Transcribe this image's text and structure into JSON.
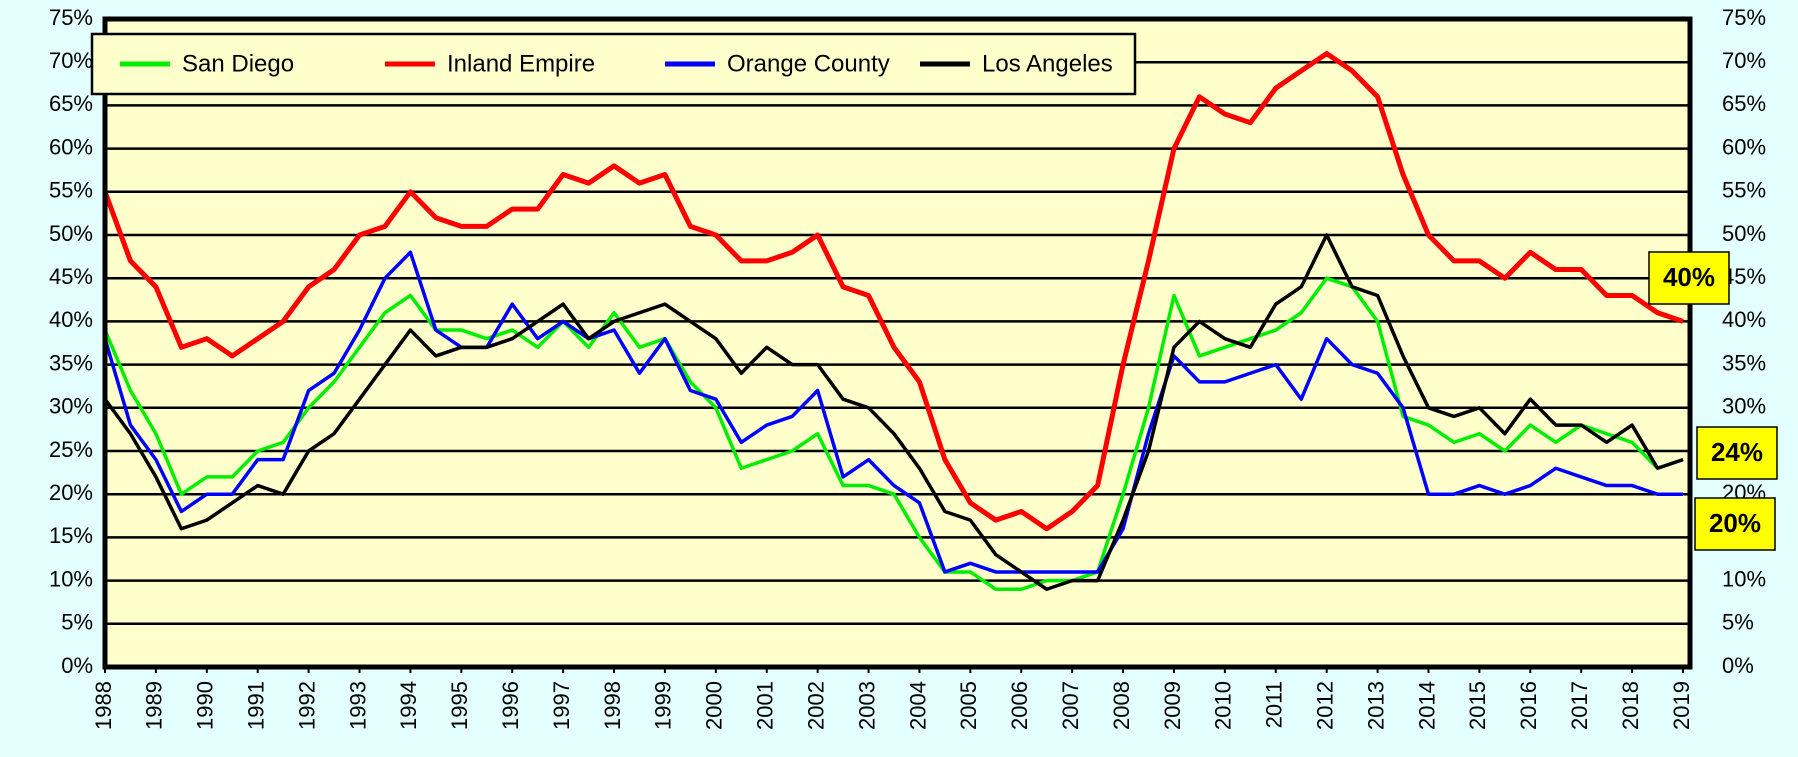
{
  "chart_data": {
    "type": "line",
    "x": [
      1988,
      1988.5,
      1989,
      1989.5,
      1990,
      1990.5,
      1991,
      1991.5,
      1992,
      1992.5,
      1993,
      1993.5,
      1994,
      1994.5,
      1995,
      1995.5,
      1996,
      1996.5,
      1997,
      1997.5,
      1998,
      1998.5,
      1999,
      1999.5,
      2000,
      2000.5,
      2001,
      2001.5,
      2002,
      2002.5,
      2003,
      2003.5,
      2004,
      2004.5,
      2005,
      2005.5,
      2006,
      2006.5,
      2007,
      2007.5,
      2008,
      2008.5,
      2009,
      2009.5,
      2010,
      2010.5,
      2011,
      2011.5,
      2012,
      2012.5,
      2013,
      2013.5,
      2014,
      2014.5,
      2015,
      2015.5,
      2016,
      2016.5,
      2017,
      2017.5,
      2018,
      2018.5,
      2019
    ],
    "series": [
      {
        "name": "San Diego",
        "color": "#00ee00",
        "values": [
          39,
          32,
          27,
          20,
          22,
          22,
          25,
          26,
          30,
          33,
          37,
          41,
          43,
          39,
          39,
          38,
          39,
          37,
          40,
          37,
          41,
          37,
          38,
          33,
          30,
          23,
          24,
          25,
          27,
          21,
          21,
          20,
          15,
          11,
          11,
          9,
          9,
          10,
          10,
          11,
          20,
          30,
          43,
          36,
          37,
          38,
          39,
          41,
          45,
          44,
          40,
          29,
          28,
          26,
          27,
          25,
          28,
          26,
          28,
          27,
          26,
          23,
          24
        ]
      },
      {
        "name": "Inland Empire",
        "color": "#ff0000",
        "values": [
          55,
          47,
          44,
          37,
          38,
          36,
          38,
          40,
          44,
          46,
          50,
          51,
          55,
          52,
          51,
          51,
          53,
          53,
          57,
          56,
          58,
          56,
          57,
          51,
          50,
          47,
          47,
          48,
          50,
          44,
          43,
          37,
          33,
          24,
          19,
          17,
          18,
          16,
          18,
          21,
          35,
          47,
          60,
          66,
          64,
          63,
          67,
          69,
          71,
          69,
          66,
          57,
          50,
          47,
          47,
          45,
          48,
          46,
          46,
          43,
          43,
          41,
          40
        ]
      },
      {
        "name": "Orange County",
        "color": "#0000ff",
        "values": [
          38,
          28,
          24,
          18,
          20,
          20,
          24,
          24,
          32,
          34,
          39,
          45,
          48,
          39,
          37,
          37,
          42,
          38,
          40,
          38,
          39,
          34,
          38,
          32,
          31,
          26,
          28,
          29,
          32,
          22,
          24,
          21,
          19,
          11,
          12,
          11,
          11,
          11,
          11,
          11,
          16,
          27,
          36,
          33,
          33,
          34,
          35,
          31,
          38,
          35,
          34,
          30,
          20,
          20,
          21,
          20,
          21,
          23,
          22,
          21,
          21,
          20,
          20
        ]
      },
      {
        "name": "Los Angeles",
        "color": "#000000",
        "values": [
          31,
          27,
          22,
          16,
          17,
          19,
          21,
          20,
          25,
          27,
          31,
          35,
          39,
          36,
          37,
          37,
          38,
          40,
          42,
          38,
          40,
          41,
          42,
          40,
          38,
          34,
          37,
          35,
          35,
          31,
          30,
          27,
          23,
          18,
          17,
          13,
          11,
          9,
          10,
          10,
          17,
          25,
          37,
          40,
          38,
          37,
          42,
          44,
          50,
          44,
          43,
          36,
          30,
          29,
          30,
          27,
          31,
          28,
          28,
          26,
          28,
          23,
          24
        ]
      }
    ],
    "xlim": [
      1988,
      2019
    ],
    "xticks": [
      1988,
      1989,
      1990,
      1991,
      1992,
      1993,
      1994,
      1995,
      1996,
      1997,
      1998,
      1999,
      2000,
      2001,
      2002,
      2003,
      2004,
      2005,
      2006,
      2007,
      2008,
      2009,
      2010,
      2011,
      2012,
      2013,
      2014,
      2015,
      2016,
      2017,
      2018,
      2019
    ],
    "ylim": [
      0,
      75
    ],
    "yticks": [
      {
        "value": 0,
        "label": "0%"
      },
      {
        "value": 5,
        "label": "5%"
      },
      {
        "value": 10,
        "label": "10%"
      },
      {
        "value": 15,
        "label": "15%"
      },
      {
        "value": 20,
        "label": "20%"
      },
      {
        "value": 25,
        "label": "25%"
      },
      {
        "value": 30,
        "label": "30%"
      },
      {
        "value": 35,
        "label": "35%"
      },
      {
        "value": 40,
        "label": "40%"
      },
      {
        "value": 45,
        "label": "45%"
      },
      {
        "value": 50,
        "label": "50%"
      },
      {
        "value": 55,
        "label": "55%"
      },
      {
        "value": 60,
        "label": "60%"
      },
      {
        "value": 65,
        "label": "65%"
      },
      {
        "value": 70,
        "label": "70%"
      },
      {
        "value": 75,
        "label": "75%"
      }
    ],
    "grid": true,
    "legend": "top-left",
    "annotations": [
      "40%",
      "24%",
      "20%"
    ]
  }
}
